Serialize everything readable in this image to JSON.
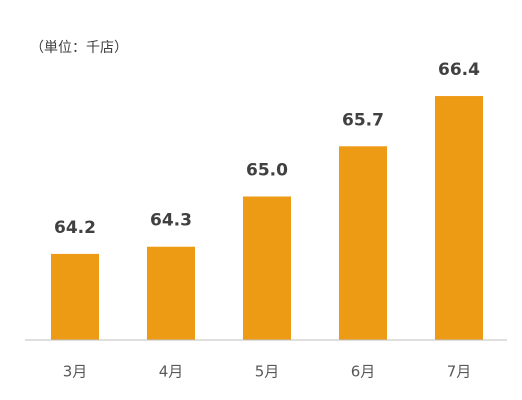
{
  "chart_data": {
    "type": "bar",
    "subtitle": "（単位：千店）",
    "categories": [
      "3月",
      "4月",
      "5月",
      "6月",
      "7月"
    ],
    "values": [
      64.2,
      64.3,
      65.0,
      65.7,
      66.4
    ],
    "value_labels": [
      "64.2",
      "64.3",
      "65.0",
      "65.7",
      "66.4"
    ],
    "color": "#ed9a14",
    "ylim": [
      63,
      67
    ]
  }
}
